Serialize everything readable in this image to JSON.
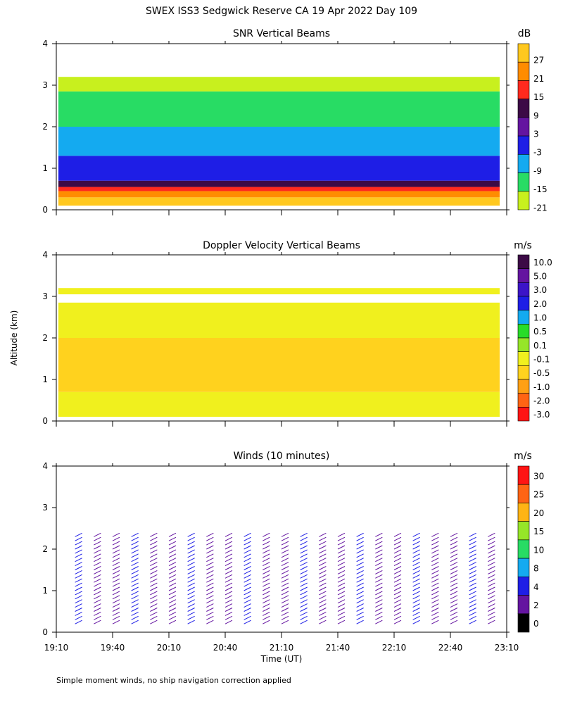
{
  "page_title": "SWEX ISS3 Sedgwick Reserve CA  19 Apr 2022 Day 109",
  "shared_y_label": "Altitude (km)",
  "x_axis_label": "Time (UT)",
  "footnote": "Simple moment winds, no ship navigation correction applied",
  "x_ticks": [
    "19:10",
    "19:40",
    "20:10",
    "20:40",
    "21:10",
    "21:40",
    "22:10",
    "22:40",
    "23:10"
  ],
  "y_ticks": [
    "0",
    "1",
    "2",
    "3",
    "4"
  ],
  "chart_data": [
    {
      "type": "heatmap",
      "title": "SNR Vertical Beams",
      "ylabel": "Altitude (km)",
      "ylim": [
        0,
        4
      ],
      "xlim": [
        "19:10",
        "23:10"
      ],
      "colorbar": {
        "unit": "dB",
        "labels": [
          "27",
          "21",
          "15",
          "9",
          "3",
          "-3",
          "-9",
          "-15",
          "-21"
        ],
        "colors": [
          "#ffc81e",
          "#ff8c00",
          "#ff2a1e",
          "#3c0a46",
          "#6414a0",
          "#1e1ee6",
          "#14aaf0",
          "#28dc64",
          "#c8f01e"
        ]
      },
      "layers": [
        {
          "alt_from": 0.1,
          "alt_to": 0.3,
          "db": 27
        },
        {
          "alt_from": 0.3,
          "alt_to": 0.45,
          "db": 21
        },
        {
          "alt_from": 0.45,
          "alt_to": 0.55,
          "db": 15
        },
        {
          "alt_from": 0.55,
          "alt_to": 0.7,
          "db": 9
        },
        {
          "alt_from": 0.7,
          "alt_to": 1.3,
          "db": -3
        },
        {
          "alt_from": 1.3,
          "alt_to": 2.0,
          "db": -9
        },
        {
          "alt_from": 2.0,
          "alt_to": 2.85,
          "db": -15
        },
        {
          "alt_from": 2.85,
          "alt_to": 3.2,
          "db": -21
        }
      ]
    },
    {
      "type": "heatmap",
      "title": "Doppler Velocity Vertical Beams",
      "ylabel": "Altitude (km)",
      "ylim": [
        0,
        4
      ],
      "xlim": [
        "19:10",
        "23:10"
      ],
      "colorbar": {
        "unit": "m/s",
        "labels": [
          "10.0",
          "5.0",
          "3.0",
          "2.0",
          "1.0",
          "0.5",
          "0.1",
          "-0.1",
          "-0.5",
          "-1.0",
          "-2.0",
          "-3.0"
        ],
        "colors": [
          "#3c0a46",
          "#6414a0",
          "#3c14c8",
          "#1e1ee6",
          "#14aaf0",
          "#28dc28",
          "#96e628",
          "#f0f01e",
          "#ffd21e",
          "#ffa014",
          "#ff6414",
          "#ff1414"
        ]
      },
      "layers": [
        {
          "alt_from": 0.1,
          "alt_to": 0.7,
          "ms": -0.1
        },
        {
          "alt_from": 0.7,
          "alt_to": 2.0,
          "ms": -0.5
        },
        {
          "alt_from": 2.0,
          "alt_to": 2.85,
          "ms": -0.1
        },
        {
          "alt_from": 3.05,
          "alt_to": 3.2,
          "ms": -0.1
        }
      ]
    },
    {
      "type": "scatter",
      "title": "Winds (10 minutes)",
      "ylabel": "Altitude (km)",
      "ylim": [
        0,
        4
      ],
      "xlim": [
        "19:10",
        "23:10"
      ],
      "colorbar": {
        "unit": "m/s",
        "labels": [
          "30",
          "25",
          "20",
          "15",
          "10",
          "8",
          "4",
          "2",
          "0"
        ],
        "colors": [
          "#ff1414",
          "#ff6414",
          "#ffb414",
          "#96e628",
          "#28dc64",
          "#14aaf0",
          "#1e1ee6",
          "#6414a0",
          "#000000"
        ]
      },
      "profile_times": [
        "19:20",
        "19:30",
        "19:40",
        "19:50",
        "20:00",
        "20:10",
        "20:20",
        "20:30",
        "20:40",
        "20:50",
        "21:00",
        "21:10",
        "21:20",
        "21:30",
        "21:40",
        "21:50",
        "22:00",
        "22:10",
        "22:20",
        "22:30",
        "22:40",
        "22:50",
        "23:00"
      ]
    }
  ]
}
